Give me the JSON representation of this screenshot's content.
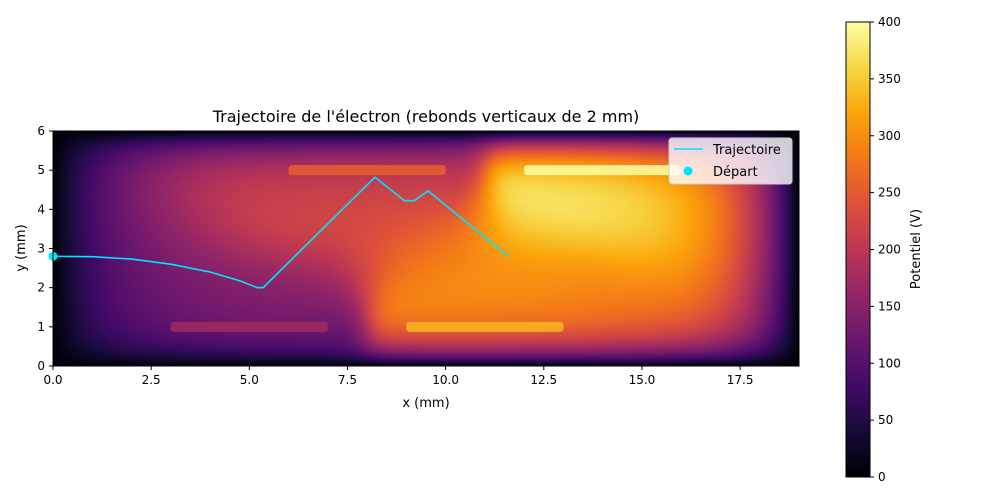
{
  "chart_data": {
    "type": "heatmap",
    "title": "Trajectoire de l'électron (rebonds verticaux de 2 mm)",
    "xlabel": "x (mm)",
    "ylabel": "y (mm)",
    "xlim": [
      0,
      19
    ],
    "ylim": [
      0,
      6
    ],
    "xticks": [
      "0.0",
      "2.5",
      "5.0",
      "7.5",
      "10.0",
      "12.5",
      "15.0",
      "17.5"
    ],
    "yticks": [
      "0",
      "1",
      "2",
      "3",
      "4",
      "5",
      "6"
    ],
    "colormap": "inferno",
    "colorbar": {
      "label": "Potentiel (V)",
      "range": [
        0,
        400
      ],
      "ticks": [
        "0",
        "50",
        "100",
        "150",
        "200",
        "250",
        "300",
        "350",
        "400"
      ]
    },
    "electrodes": [
      {
        "x": [
          6.0,
          10.0
        ],
        "y": 5.0,
        "potential": 230
      },
      {
        "x": [
          12.0,
          16.0
        ],
        "y": 5.0,
        "potential": 400
      },
      {
        "x": [
          3.0,
          7.0
        ],
        "y": 1.0,
        "potential": 150
      },
      {
        "x": [
          9.0,
          13.0
        ],
        "y": 1.0,
        "potential": 310
      }
    ],
    "series": [
      {
        "name": "Trajectoire",
        "color": "#00e5ff",
        "points": [
          [
            0.0,
            2.8
          ],
          [
            1.0,
            2.79
          ],
          [
            2.0,
            2.73
          ],
          [
            3.0,
            2.6
          ],
          [
            4.0,
            2.4
          ],
          [
            4.8,
            2.16
          ],
          [
            5.2,
            2.0
          ],
          [
            5.35,
            2.0
          ],
          [
            8.2,
            4.82
          ],
          [
            8.95,
            4.22
          ],
          [
            9.2,
            4.22
          ],
          [
            9.55,
            4.47
          ],
          [
            11.6,
            2.8
          ]
        ]
      },
      {
        "name": "Départ",
        "color": "#00e5ff",
        "marker": "circle",
        "points": [
          [
            0.0,
            2.8
          ]
        ]
      }
    ],
    "legend_position": "top-right"
  }
}
